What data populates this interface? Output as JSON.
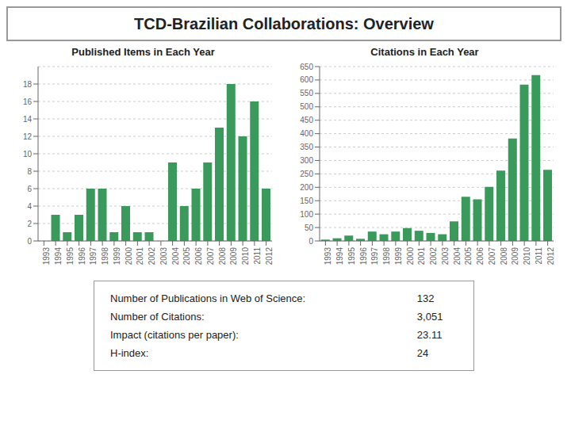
{
  "title": "TCD-Brazilian Collaborations: Overview",
  "chart_data": [
    {
      "type": "bar",
      "title": "Published Items in Each Year",
      "categories": [
        1993,
        1994,
        1995,
        1996,
        1997,
        1998,
        1999,
        2000,
        2001,
        2002,
        2003,
        2004,
        2005,
        2006,
        2007,
        2008,
        2009,
        2010,
        2011,
        2012
      ],
      "values": [
        0,
        3,
        1,
        3,
        6,
        6,
        1,
        4,
        1,
        1,
        0,
        9,
        4,
        6,
        9,
        13,
        18,
        12,
        16,
        6
      ],
      "color": "#3a9a5c",
      "ylim": [
        0,
        20
      ],
      "yticks": [
        0,
        2,
        4,
        6,
        8,
        10,
        12,
        14,
        16,
        18
      ],
      "grid": true
    },
    {
      "type": "bar",
      "title": "Citations in Each Year",
      "categories": [
        1993,
        1994,
        1995,
        1996,
        1997,
        1998,
        1999,
        2000,
        2001,
        2002,
        2003,
        2004,
        2005,
        2006,
        2007,
        2008,
        2009,
        2010,
        2011,
        2012
      ],
      "values": [
        5,
        10,
        20,
        8,
        35,
        25,
        35,
        48,
        38,
        30,
        25,
        73,
        165,
        155,
        202,
        262,
        382,
        583,
        618,
        265
      ],
      "color": "#3a9a5c",
      "ylim": [
        0,
        650
      ],
      "yticks": [
        0,
        50,
        100,
        150,
        200,
        250,
        300,
        350,
        400,
        450,
        500,
        550,
        600,
        650
      ],
      "grid": true
    }
  ],
  "annotations": [
    [
      "Number of Publications in Web of Science:",
      "132"
    ],
    [
      "Number of Citations:",
      "3,051"
    ],
    [
      "Impact (citations per paper):",
      "23.11"
    ],
    [
      "H-index:",
      "24"
    ]
  ]
}
